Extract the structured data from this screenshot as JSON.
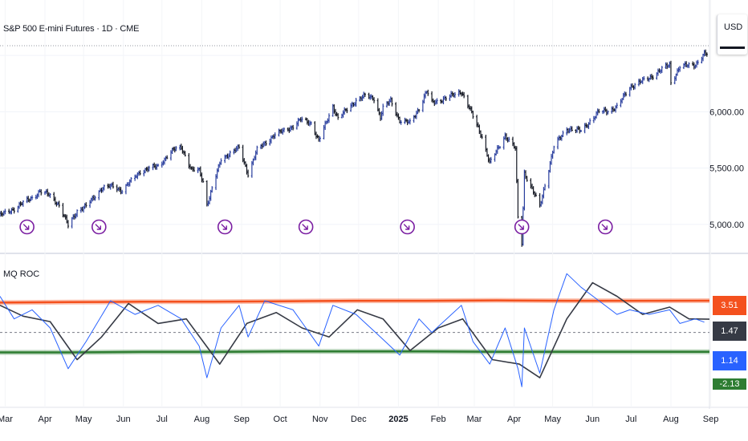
{
  "header": {
    "symbol_title": "S&P 500 E-mini Futures · 1D · CME",
    "currency": "USD"
  },
  "indicator": {
    "title": "MQ ROC",
    "labels": [
      {
        "text": "3.51",
        "color": "#f4511e"
      },
      {
        "text": "1.47",
        "color": "#363a45"
      },
      {
        "text": "1.14",
        "color": "#2962ff"
      },
      {
        "text": "-2.13",
        "color": "#2e7d32"
      }
    ]
  },
  "chart_data": [
    {
      "type": "ohlc",
      "title": "S&P 500 E-mini Futures · 1D · CME",
      "y_ticks": [
        5000,
        5500,
        6000
      ],
      "y_tick_labels": [
        "5,000.00",
        "5,500.00",
        "6,000.00"
      ],
      "ylim": [
        4750,
        6650
      ],
      "line_color": "#2a3f9e",
      "down_color": "#131722",
      "grid": true,
      "points": [
        {
          "d": "2024-02-26",
          "v": 5080
        },
        {
          "d": "2024-03-08",
          "v": 5140
        },
        {
          "d": "2024-03-22",
          "v": 5240
        },
        {
          "d": "2024-03-28",
          "v": 5290
        },
        {
          "d": "2024-04-05",
          "v": 5260
        },
        {
          "d": "2024-04-12",
          "v": 5170
        },
        {
          "d": "2024-04-19",
          "v": 4990
        },
        {
          "d": "2024-04-26",
          "v": 5120
        },
        {
          "d": "2024-05-03",
          "v": 5160
        },
        {
          "d": "2024-05-15",
          "v": 5320
        },
        {
          "d": "2024-05-24",
          "v": 5340
        },
        {
          "d": "2024-05-31",
          "v": 5300
        },
        {
          "d": "2024-06-14",
          "v": 5470
        },
        {
          "d": "2024-06-28",
          "v": 5520
        },
        {
          "d": "2024-07-10",
          "v": 5660
        },
        {
          "d": "2024-07-16",
          "v": 5690
        },
        {
          "d": "2024-07-24",
          "v": 5480
        },
        {
          "d": "2024-07-30",
          "v": 5480
        },
        {
          "d": "2024-08-02",
          "v": 5380
        },
        {
          "d": "2024-08-05",
          "v": 5180
        },
        {
          "d": "2024-08-07",
          "v": 5240
        },
        {
          "d": "2024-08-16",
          "v": 5580
        },
        {
          "d": "2024-08-30",
          "v": 5680
        },
        {
          "d": "2024-09-06",
          "v": 5450
        },
        {
          "d": "2024-09-13",
          "v": 5660
        },
        {
          "d": "2024-09-26",
          "v": 5790
        },
        {
          "d": "2024-10-11",
          "v": 5870
        },
        {
          "d": "2024-10-17",
          "v": 5930
        },
        {
          "d": "2024-10-25",
          "v": 5900
        },
        {
          "d": "2024-10-31",
          "v": 5740
        },
        {
          "d": "2024-11-11",
          "v": 6050
        },
        {
          "d": "2024-11-15",
          "v": 5940
        },
        {
          "d": "2024-11-29",
          "v": 6100
        },
        {
          "d": "2024-12-06",
          "v": 6140
        },
        {
          "d": "2024-12-13",
          "v": 6120
        },
        {
          "d": "2024-12-18",
          "v": 5950
        },
        {
          "d": "2024-12-20",
          "v": 6030
        },
        {
          "d": "2024-12-26",
          "v": 6100
        },
        {
          "d": "2025-01-02",
          "v": 5920
        },
        {
          "d": "2025-01-10",
          "v": 5900
        },
        {
          "d": "2025-01-17",
          "v": 6030
        },
        {
          "d": "2025-01-23",
          "v": 6180
        },
        {
          "d": "2025-01-27",
          "v": 6080
        },
        {
          "d": "2025-02-07",
          "v": 6120
        },
        {
          "d": "2025-02-19",
          "v": 6180
        },
        {
          "d": "2025-02-28",
          "v": 5960
        },
        {
          "d": "2025-03-07",
          "v": 5780
        },
        {
          "d": "2025-03-13",
          "v": 5540
        },
        {
          "d": "2025-03-25",
          "v": 5790
        },
        {
          "d": "2025-04-02",
          "v": 5670
        },
        {
          "d": "2025-04-04",
          "v": 5060
        },
        {
          "d": "2025-04-07",
          "v": 4840
        },
        {
          "d": "2025-04-09",
          "v": 5460
        },
        {
          "d": "2025-04-21",
          "v": 5160
        },
        {
          "d": "2025-05-02",
          "v": 5690
        },
        {
          "d": "2025-05-12",
          "v": 5850
        },
        {
          "d": "2025-05-23",
          "v": 5830
        },
        {
          "d": "2025-06-06",
          "v": 6000
        },
        {
          "d": "2025-06-13",
          "v": 6010
        },
        {
          "d": "2025-06-20",
          "v": 6040
        },
        {
          "d": "2025-06-30",
          "v": 6220
        },
        {
          "d": "2025-07-15",
          "v": 6300
        },
        {
          "d": "2025-07-31",
          "v": 6420
        },
        {
          "d": "2025-08-01",
          "v": 6260
        },
        {
          "d": "2025-08-08",
          "v": 6400
        },
        {
          "d": "2025-08-20",
          "v": 6420
        },
        {
          "d": "2025-08-27",
          "v": 6510
        }
      ],
      "events": [
        "2024-03-18",
        "2024-05-13",
        "2024-08-19",
        "2024-10-21",
        "2025-01-08",
        "2025-04-07",
        "2025-06-11"
      ]
    },
    {
      "type": "line",
      "title": "MQ ROC",
      "ylim": [
        -6.5,
        7.5
      ],
      "bands": [
        {
          "name": "upper",
          "color": "#f4511e",
          "values": [
            3.3,
            3.35,
            3.4,
            3.4,
            3.45,
            3.5,
            3.5,
            3.55,
            3.5,
            3.5,
            3.51
          ]
        },
        {
          "name": "lower",
          "color": "#2e7d32",
          "values": [
            -2.2,
            -2.2,
            -2.15,
            -2.15,
            -2.1,
            -2.1,
            -2.1,
            -2.13,
            -2.13,
            -2.13,
            -2.13
          ]
        }
      ],
      "zero_line": 0,
      "series": [
        {
          "color": "#363a45",
          "points": [
            {
              "d": "2024-02-26",
              "v": 3.0
            },
            {
              "d": "2024-03-15",
              "v": 1.8
            },
            {
              "d": "2024-04-05",
              "v": 1.2
            },
            {
              "d": "2024-04-26",
              "v": -3.0
            },
            {
              "d": "2024-05-15",
              "v": -0.5
            },
            {
              "d": "2024-06-05",
              "v": 3.2
            },
            {
              "d": "2024-06-28",
              "v": 1.0
            },
            {
              "d": "2024-07-20",
              "v": 1.5
            },
            {
              "d": "2024-08-15",
              "v": -3.5
            },
            {
              "d": "2024-09-05",
              "v": 1.0
            },
            {
              "d": "2024-09-28",
              "v": 2.2
            },
            {
              "d": "2024-10-18",
              "v": 0.5
            },
            {
              "d": "2024-11-08",
              "v": -0.5
            },
            {
              "d": "2024-11-30",
              "v": 2.5
            },
            {
              "d": "2024-12-20",
              "v": 1.5
            },
            {
              "d": "2025-01-10",
              "v": -2.0
            },
            {
              "d": "2025-02-01",
              "v": 0.5
            },
            {
              "d": "2025-02-20",
              "v": 1.5
            },
            {
              "d": "2025-03-15",
              "v": -3.0
            },
            {
              "d": "2025-04-05",
              "v": -3.5
            },
            {
              "d": "2025-04-21",
              "v": -5.0
            },
            {
              "d": "2025-05-12",
              "v": 1.5
            },
            {
              "d": "2025-06-01",
              "v": 5.5
            },
            {
              "d": "2025-06-20",
              "v": 4.0
            },
            {
              "d": "2025-07-10",
              "v": 2.0
            },
            {
              "d": "2025-07-31",
              "v": 2.8
            },
            {
              "d": "2025-08-15",
              "v": 1.5
            },
            {
              "d": "2025-08-31",
              "v": 1.47
            }
          ]
        },
        {
          "color": "#2962ff",
          "points": [
            {
              "d": "2024-02-26",
              "v": 4.0
            },
            {
              "d": "2024-03-08",
              "v": 1.5
            },
            {
              "d": "2024-03-22",
              "v": 2.5
            },
            {
              "d": "2024-04-05",
              "v": 0.5
            },
            {
              "d": "2024-04-19",
              "v": -4.0
            },
            {
              "d": "2024-05-03",
              "v": -1.0
            },
            {
              "d": "2024-05-22",
              "v": 3.5
            },
            {
              "d": "2024-06-10",
              "v": 2.0
            },
            {
              "d": "2024-06-28",
              "v": 3.0
            },
            {
              "d": "2024-07-16",
              "v": 1.5
            },
            {
              "d": "2024-07-30",
              "v": -1.5
            },
            {
              "d": "2024-08-05",
              "v": -5.0
            },
            {
              "d": "2024-08-16",
              "v": 0.5
            },
            {
              "d": "2024-08-30",
              "v": 3.0
            },
            {
              "d": "2024-09-06",
              "v": -0.5
            },
            {
              "d": "2024-09-19",
              "v": 3.5
            },
            {
              "d": "2024-10-11",
              "v": 2.5
            },
            {
              "d": "2024-10-31",
              "v": -1.5
            },
            {
              "d": "2024-11-11",
              "v": 3.0
            },
            {
              "d": "2024-11-29",
              "v": 2.0
            },
            {
              "d": "2024-12-18",
              "v": -0.5
            },
            {
              "d": "2025-01-02",
              "v": -2.5
            },
            {
              "d": "2025-01-17",
              "v": 1.5
            },
            {
              "d": "2025-01-27",
              "v": 0.0
            },
            {
              "d": "2025-02-19",
              "v": 3.0
            },
            {
              "d": "2025-02-28",
              "v": -1.0
            },
            {
              "d": "2025-03-13",
              "v": -3.5
            },
            {
              "d": "2025-03-25",
              "v": 0.5
            },
            {
              "d": "2025-04-04",
              "v": -4.0
            },
            {
              "d": "2025-04-07",
              "v": -6.0
            },
            {
              "d": "2025-04-09",
              "v": 0.5
            },
            {
              "d": "2025-04-21",
              "v": -4.5
            },
            {
              "d": "2025-05-02",
              "v": 2.5
            },
            {
              "d": "2025-05-12",
              "v": 6.5
            },
            {
              "d": "2025-05-23",
              "v": 5.0
            },
            {
              "d": "2025-06-06",
              "v": 3.5
            },
            {
              "d": "2025-06-20",
              "v": 2.0
            },
            {
              "d": "2025-06-30",
              "v": 2.5
            },
            {
              "d": "2025-07-15",
              "v": 2.0
            },
            {
              "d": "2025-07-31",
              "v": 2.5
            },
            {
              "d": "2025-08-08",
              "v": 1.0
            },
            {
              "d": "2025-08-20",
              "v": 1.5
            },
            {
              "d": "2025-08-27",
              "v": 1.14
            }
          ]
        }
      ]
    }
  ],
  "x_axis": {
    "labels": [
      {
        "d": "2024-03-01",
        "t": "Mar",
        "bold": false
      },
      {
        "d": "2024-04-01",
        "t": "Apr",
        "bold": false
      },
      {
        "d": "2024-05-01",
        "t": "May",
        "bold": false
      },
      {
        "d": "2024-06-01",
        "t": "Jun",
        "bold": false
      },
      {
        "d": "2024-07-01",
        "t": "Jul",
        "bold": false
      },
      {
        "d": "2024-08-01",
        "t": "Aug",
        "bold": false
      },
      {
        "d": "2024-09-01",
        "t": "Sep",
        "bold": false
      },
      {
        "d": "2024-10-01",
        "t": "Oct",
        "bold": false
      },
      {
        "d": "2024-11-01",
        "t": "Nov",
        "bold": false
      },
      {
        "d": "2024-12-01",
        "t": "Dec",
        "bold": false
      },
      {
        "d": "2025-01-01",
        "t": "2025",
        "bold": true
      },
      {
        "d": "2025-02-01",
        "t": "Feb",
        "bold": false
      },
      {
        "d": "2025-03-01",
        "t": "Mar",
        "bold": false
      },
      {
        "d": "2025-04-01",
        "t": "Apr",
        "bold": false
      },
      {
        "d": "2025-05-01",
        "t": "May",
        "bold": false
      },
      {
        "d": "2025-06-01",
        "t": "Jun",
        "bold": false
      },
      {
        "d": "2025-07-01",
        "t": "Jul",
        "bold": false
      },
      {
        "d": "2025-08-01",
        "t": "Aug",
        "bold": false
      },
      {
        "d": "2025-09-01",
        "t": "Sep",
        "bold": false
      }
    ]
  }
}
